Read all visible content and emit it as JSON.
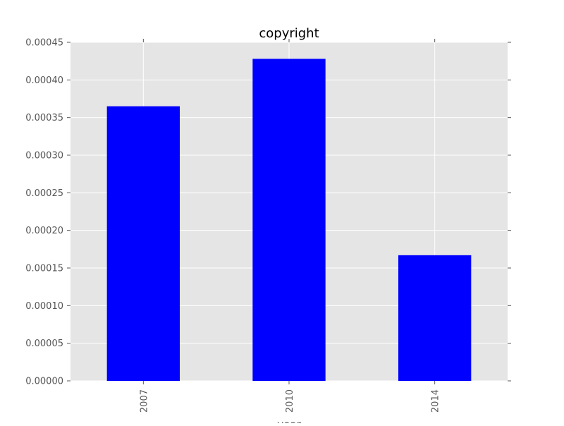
{
  "chart_data": {
    "type": "bar",
    "title": "copyright",
    "xlabel": "year",
    "ylabel": "",
    "categories": [
      "2007",
      "2010",
      "2014"
    ],
    "values": [
      0.000365,
      0.000428,
      0.000167
    ],
    "ylim": [
      0,
      0.00045
    ],
    "yticks": [
      "0.00000",
      "0.00005",
      "0.00010",
      "0.00015",
      "0.00020",
      "0.00025",
      "0.00030",
      "0.00035",
      "0.00040",
      "0.00045"
    ],
    "grid": true,
    "bar_color": "#0000ff",
    "plot_background": "#e5e5e5",
    "grid_color": "#ffffff",
    "legend": "none"
  }
}
